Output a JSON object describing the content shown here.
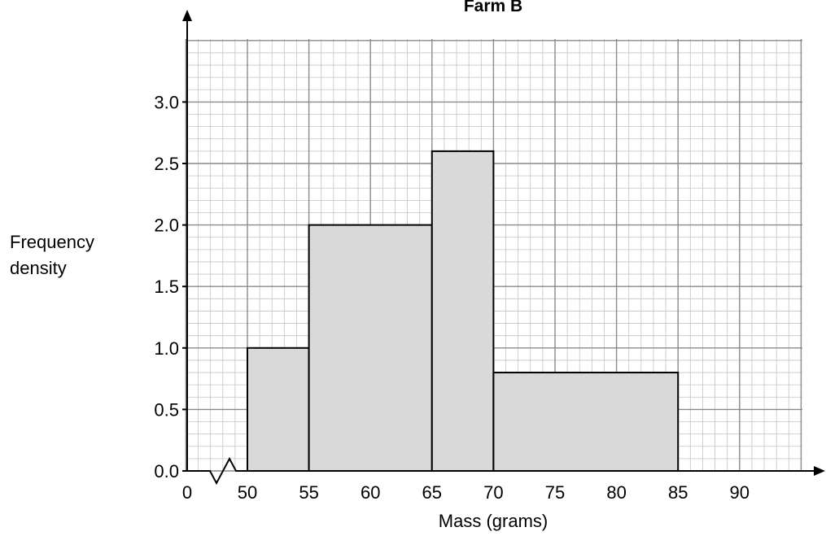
{
  "chart_data": {
    "type": "bar",
    "title": "Farm B",
    "xlabel": "Mass (grams)",
    "ylabel_line1": "Frequency",
    "ylabel_line2": "density",
    "x_tick_labels": [
      "0",
      "50",
      "55",
      "60",
      "65",
      "70",
      "75",
      "80",
      "85",
      "90"
    ],
    "y_tick_labels": [
      "0.0",
      "0.5",
      "1.0",
      "1.5",
      "2.0",
      "2.5",
      "3.0"
    ],
    "xlim": [
      45,
      95
    ],
    "ylim": [
      0,
      3.5
    ],
    "grid": true,
    "axis_break": true,
    "bars": [
      {
        "x0": 50,
        "x1": 55,
        "value": 1.0
      },
      {
        "x0": 55,
        "x1": 65,
        "value": 2.0
      },
      {
        "x0": 65,
        "x1": 70,
        "value": 2.6
      },
      {
        "x0": 70,
        "x1": 85,
        "value": 0.8
      }
    ],
    "colors": {
      "bar_fill": "#d9d9d9",
      "grid_major": "#8a8a8a",
      "grid_minor": "#c4c4c4",
      "axis": "#000000"
    }
  }
}
